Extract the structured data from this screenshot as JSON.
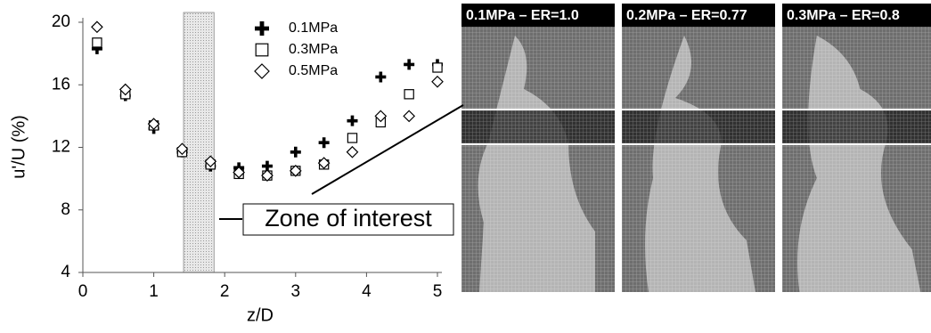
{
  "chart_data": {
    "type": "scatter",
    "xlabel": "z/D",
    "ylabel": "u'/U (%)",
    "x": [
      0.2,
      0.6,
      1.0,
      1.4,
      1.8,
      2.2,
      2.6,
      3.0,
      3.4,
      3.8,
      4.2,
      4.6,
      5.0
    ],
    "series": [
      {
        "name": "0.1MPa",
        "marker": "plus",
        "color": "#000000",
        "values": [
          18.3,
          15.3,
          13.2,
          11.7,
          10.8,
          10.7,
          10.8,
          11.7,
          12.3,
          13.7,
          16.5,
          17.3,
          17.3
        ]
      },
      {
        "name": "0.3MPa",
        "marker": "square",
        "color": "#000000",
        "values": [
          18.7,
          15.4,
          13.4,
          11.7,
          10.9,
          10.3,
          10.2,
          10.5,
          10.9,
          12.6,
          13.6,
          15.4,
          17.1
        ]
      },
      {
        "name": "0.5MPa",
        "marker": "diamond",
        "color": "#000000",
        "values": [
          19.7,
          15.7,
          13.5,
          11.9,
          11.1,
          10.4,
          10.2,
          10.5,
          11.0,
          11.7,
          14.0,
          14.0,
          16.2
        ]
      }
    ],
    "xlim": [
      0,
      5
    ],
    "xticks": [
      0,
      1,
      2,
      3,
      4,
      5
    ],
    "ylim": [
      4,
      20
    ],
    "yticks": [
      4,
      8,
      12,
      16,
      20
    ],
    "highlight_x": [
      1.42,
      1.85
    ],
    "annotation": "Zone of interest",
    "panels": [
      "0.1MPa – ER=1.0",
      "0.2MPa – ER=0.77",
      "0.3MPa – ER=0.8"
    ]
  }
}
